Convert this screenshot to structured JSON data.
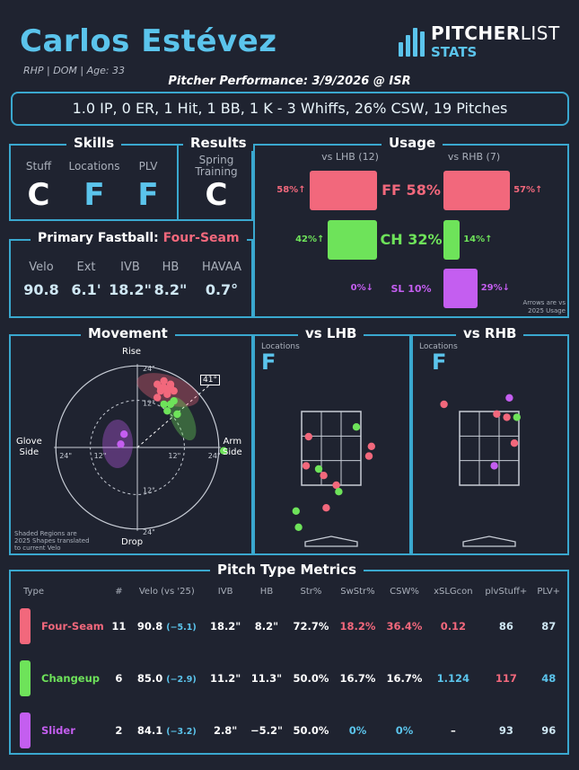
{
  "player": {
    "name": "Carlos Estévez",
    "meta": "RHP | DOM | Age: 33"
  },
  "logo": {
    "brand1": "PITCHER",
    "brand2": "LIST",
    "sub": "STATS"
  },
  "performance": {
    "title": "Pitcher Performance: 3/9/2026 @ ISR",
    "line": "1.0 IP, 0 ER, 1 Hit, 1 BB, 1 K - 3 Whiffs, 26% CSW, 19 Pitches"
  },
  "skills": {
    "title": "Skills",
    "labels": [
      "Stuff",
      "Locations",
      "PLV"
    ],
    "grades": [
      "C",
      "F",
      "F"
    ]
  },
  "results": {
    "title": "Results",
    "label1": "Spring",
    "label2": "Training",
    "grade": "C"
  },
  "fastball": {
    "title": "Primary Fastball:",
    "type": "Four-Seam",
    "labels": [
      "Velo",
      "Ext",
      "IVB",
      "HB",
      "HAVAA"
    ],
    "values": [
      "90.8",
      "6.1'",
      "18.2\"",
      "8.2\"",
      "0.7°"
    ]
  },
  "usage": {
    "title": "Usage",
    "lhb_label": "vs LHB (12)",
    "rhb_label": "vs RHB (7)",
    "note1": "Arrows are vs",
    "note2": "2025 Usage",
    "rows": [
      {
        "name": "FF 58%",
        "lhb": "58%↑",
        "rhb": "57%↑",
        "lhb_pct": 58,
        "rhb_pct": 57,
        "color": "#f2687c"
      },
      {
        "name": "CH 32%",
        "lhb": "42%↑",
        "rhb": "14%↑",
        "lhb_pct": 42,
        "rhb_pct": 14,
        "color": "#6ee35a"
      },
      {
        "name": "SL 10%",
        "lhb": "0%↓",
        "rhb": "29%↓",
        "lhb_pct": 0,
        "rhb_pct": 29,
        "color": "#c45ef0"
      }
    ]
  },
  "movement": {
    "title": "Movement",
    "top": "Rise",
    "bottom": "Drop",
    "left1": "Glove",
    "left2": "Side",
    "right1": "Arm",
    "right2": "Side",
    "arm_angle": "41°",
    "ticks": [
      "24\"",
      "12\"",
      "12\"",
      "24\"",
      "24\"",
      "12\"",
      "12\"",
      "24\""
    ],
    "note1": "Shaded Regions are",
    "note2": "2025 Shapes translated",
    "note3": "to current Velo"
  },
  "locations": {
    "lhb_title": "vs LHB",
    "rhb_title": "vs RHB",
    "label": "Locations",
    "lhb_grade": "F",
    "rhb_grade": "F"
  },
  "metrics": {
    "title": "Pitch Type Metrics",
    "headers": [
      "Type",
      "#",
      "Velo (vs '25)",
      "IVB",
      "HB",
      "Str%",
      "SwStr%",
      "CSW%",
      "xSLGcon",
      "plvStuff+",
      "PLV+"
    ],
    "rows": [
      {
        "type": "Four-Seam",
        "color": "#f2687c",
        "n": "11",
        "velo": "90.8",
        "dv": "(−5.1)",
        "ivb": "18.2\"",
        "hb": "8.2\"",
        "str": "72.7%",
        "swstr": "18.2%",
        "csw": "36.4%",
        "xslg": "0.12",
        "stuff": "86",
        "plv": "87"
      },
      {
        "type": "Changeup",
        "color": "#6ee35a",
        "n": "6",
        "velo": "85.0",
        "dv": "(−2.9)",
        "ivb": "11.2\"",
        "hb": "11.3\"",
        "str": "50.0%",
        "swstr": "16.7%",
        "csw": "16.7%",
        "xslg": "1.124",
        "stuff": "117",
        "plv": "48"
      },
      {
        "type": "Slider",
        "color": "#c45ef0",
        "n": "2",
        "velo": "84.1",
        "dv": "(−3.2)",
        "ivb": "2.8\"",
        "hb": "−5.2\"",
        "str": "50.0%",
        "swstr": "0%",
        "csw": "0%",
        "xslg": "–",
        "stuff": "93",
        "plv": "96"
      }
    ]
  },
  "chart_data": [
    {
      "type": "bar",
      "title": "Usage",
      "categories": [
        "FF",
        "CH",
        "SL"
      ],
      "series": [
        {
          "name": "vs LHB (12)",
          "values": [
            58,
            42,
            0
          ]
        },
        {
          "name": "vs RHB (7)",
          "values": [
            57,
            14,
            29
          ]
        }
      ]
    },
    {
      "type": "scatter",
      "title": "Movement",
      "xlabel": "HB",
      "ylabel": "IVB",
      "xlim": [
        -30,
        30
      ],
      "ylim": [
        -30,
        30
      ],
      "series": [
        {
          "name": "Four-Seam",
          "color": "#f2687c",
          "points": [
            [
              6,
              19
            ],
            [
              8,
              18
            ],
            [
              10,
              18
            ],
            [
              7,
              17
            ],
            [
              9,
              16
            ],
            [
              8,
              20
            ],
            [
              11,
              17
            ],
            [
              6,
              15
            ],
            [
              10,
              19
            ],
            [
              7,
              18
            ],
            [
              9,
              17
            ]
          ]
        },
        {
          "name": "Changeup",
          "color": "#6ee35a",
          "points": [
            [
              8,
              13
            ],
            [
              10,
              13
            ],
            [
              9,
              11
            ],
            [
              12,
              10
            ],
            [
              26,
              -1
            ],
            [
              11,
              14
            ]
          ]
        },
        {
          "name": "Slider",
          "color": "#c45ef0",
          "points": [
            [
              -5,
              1
            ],
            [
              -4,
              4
            ]
          ]
        }
      ]
    },
    {
      "type": "scatter",
      "title": "vs LHB",
      "points": [
        {
          "c": "#f2687c",
          "x": -0.9,
          "z": 3.0
        },
        {
          "c": "#6ee35a",
          "x": 1.0,
          "z": 3.3
        },
        {
          "c": "#f2687c",
          "x": 1.6,
          "z": 2.7
        },
        {
          "c": "#f2687c",
          "x": 1.5,
          "z": 2.4
        },
        {
          "c": "#f2687c",
          "x": -1.0,
          "z": 2.1
        },
        {
          "c": "#6ee35a",
          "x": -0.5,
          "z": 2.0
        },
        {
          "c": "#f2687c",
          "x": -0.3,
          "z": 1.8
        },
        {
          "c": "#f2687c",
          "x": 0.2,
          "z": 1.5
        },
        {
          "c": "#6ee35a",
          "x": 0.3,
          "z": 1.3
        },
        {
          "c": "#f2687c",
          "x": -0.2,
          "z": 0.8
        },
        {
          "c": "#6ee35a",
          "x": -1.4,
          "z": 0.7
        },
        {
          "c": "#6ee35a",
          "x": -1.3,
          "z": 0.2
        }
      ]
    },
    {
      "type": "scatter",
      "title": "vs RHB",
      "points": [
        {
          "c": "#f2687c",
          "x": -1.8,
          "z": 4.0
        },
        {
          "c": "#c45ef0",
          "x": 0.8,
          "z": 4.2
        },
        {
          "c": "#f2687c",
          "x": 0.3,
          "z": 3.7
        },
        {
          "c": "#f2687c",
          "x": 0.7,
          "z": 3.6
        },
        {
          "c": "#6ee35a",
          "x": 1.1,
          "z": 3.6
        },
        {
          "c": "#f2687c",
          "x": 1.0,
          "z": 2.8
        },
        {
          "c": "#c45ef0",
          "x": 0.2,
          "z": 2.1
        }
      ]
    }
  ]
}
